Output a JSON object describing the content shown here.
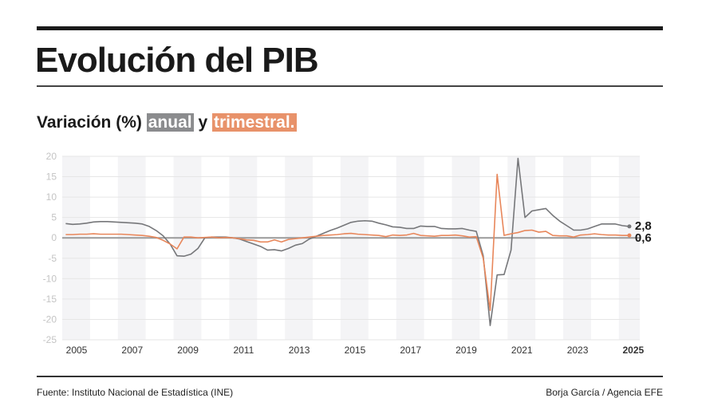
{
  "title": "Evolución del PIB",
  "subtitle": {
    "prefix": "Variación (%)",
    "anual": "anual",
    "mid": "y",
    "trimestral": "trimestral."
  },
  "footer": {
    "source": "Fuente: Instituto Nacional de Estadística (INE)",
    "credit": "Borja García / Agencia EFE"
  },
  "chart_data": {
    "type": "line",
    "title": "",
    "xlabel": "",
    "ylabel": "",
    "ylim": [
      -25,
      20
    ],
    "xlim": [
      2005,
      2025.75
    ],
    "yticks": [
      "20",
      "15",
      "10",
      "5",
      "0",
      "-5",
      "-10",
      "-15",
      "-20",
      "-25"
    ],
    "xticks": [
      "2005",
      "2007",
      "2009",
      "2011",
      "2013",
      "2015",
      "2017",
      "2019",
      "2021",
      "2023",
      "2025"
    ],
    "grid": true,
    "alternate_year_shading": true,
    "x_quarters_start": "2005 Q1",
    "series": [
      {
        "key": "anual",
        "color": "#76777a",
        "end_label": "2,8",
        "values": [
          3.5,
          3.3,
          3.4,
          3.6,
          3.9,
          4.0,
          4.0,
          3.9,
          3.8,
          3.7,
          3.6,
          3.4,
          2.8,
          1.8,
          0.5,
          -1.5,
          -4.4,
          -4.5,
          -4.0,
          -2.6,
          0.0,
          0.2,
          0.2,
          0.2,
          0.0,
          -0.3,
          -0.9,
          -1.5,
          -2.1,
          -3.0,
          -2.9,
          -3.2,
          -2.6,
          -1.8,
          -1.4,
          -0.3,
          0.4,
          1.1,
          1.8,
          2.4,
          3.1,
          3.8,
          4.1,
          4.2,
          4.1,
          3.6,
          3.2,
          2.7,
          2.6,
          2.3,
          2.3,
          2.9,
          2.8,
          2.8,
          2.3,
          2.2,
          2.2,
          2.3,
          1.9,
          1.6,
          -4.4,
          -21.5,
          -9.1,
          -9.0,
          -3.0,
          19.5,
          5.0,
          6.6,
          6.9,
          7.2,
          5.5,
          4.1,
          3.0,
          1.9,
          1.9,
          2.2,
          2.8,
          3.4,
          3.4,
          3.4,
          3.0,
          2.8
        ]
      },
      {
        "key": "trimestral",
        "color": "#e8875b",
        "end_label": "0,6",
        "values": [
          0.8,
          0.8,
          0.9,
          0.9,
          1.0,
          0.9,
          0.9,
          0.9,
          0.9,
          0.8,
          0.7,
          0.6,
          0.4,
          0.1,
          -0.6,
          -1.5,
          -2.7,
          0.2,
          0.2,
          0.0,
          0.1,
          0.2,
          0.0,
          0.1,
          0.0,
          -0.2,
          -0.5,
          -0.6,
          -1.0,
          -1.0,
          -0.5,
          -1.0,
          -0.4,
          -0.2,
          0.0,
          0.2,
          0.4,
          0.6,
          0.7,
          0.8,
          1.0,
          1.1,
          0.9,
          0.8,
          0.7,
          0.6,
          0.3,
          0.7,
          0.6,
          0.7,
          1.1,
          0.6,
          0.5,
          0.4,
          0.6,
          0.6,
          0.7,
          0.5,
          0.2,
          0.3,
          -5.0,
          -17.8,
          15.6,
          0.6,
          1.0,
          1.3,
          1.8,
          1.9,
          1.4,
          1.6,
          0.6,
          0.5,
          0.5,
          0.2,
          0.7,
          0.8,
          1.0,
          0.8,
          0.7,
          0.7,
          0.6,
          0.6
        ]
      }
    ]
  }
}
